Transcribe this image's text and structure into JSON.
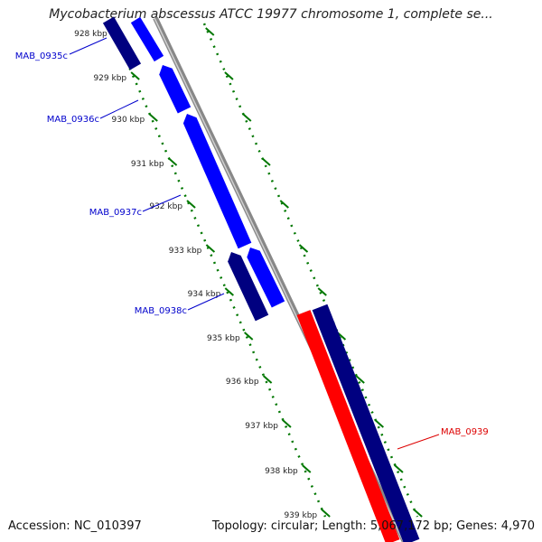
{
  "title": "Mycobacterium abscessus ATCC 19977 chromosome 1, complete se...",
  "footer": {
    "accession": "Accession: NC_010397",
    "summary": "Topology: circular; Length: 5,067,172 bp; Genes: 4,970"
  },
  "ticks": [
    "928 kbp",
    "929 kbp",
    "930 kbp",
    "931 kbp",
    "932 kbp",
    "933 kbp",
    "934 kbp",
    "935 kbp",
    "936 kbp",
    "937 kbp",
    "938 kbp",
    "939 kbp"
  ],
  "genes": [
    {
      "name": "MAB_0935c",
      "strand": "reverse"
    },
    {
      "name": "MAB_0936c",
      "strand": "reverse"
    },
    {
      "name": "MAB_0937c",
      "strand": "reverse"
    },
    {
      "name": "MAB_0938c",
      "strand": "reverse"
    },
    {
      "name": "MAB_0939",
      "strand": "forward"
    }
  ],
  "colors": {
    "gene_blue": "#0000ff",
    "gene_navy": "#000080",
    "gene_red": "#ff0000",
    "label_blue": "#0000cc",
    "label_red": "#dd0000",
    "backbone": "#888888",
    "tick_green": "#007700"
  }
}
